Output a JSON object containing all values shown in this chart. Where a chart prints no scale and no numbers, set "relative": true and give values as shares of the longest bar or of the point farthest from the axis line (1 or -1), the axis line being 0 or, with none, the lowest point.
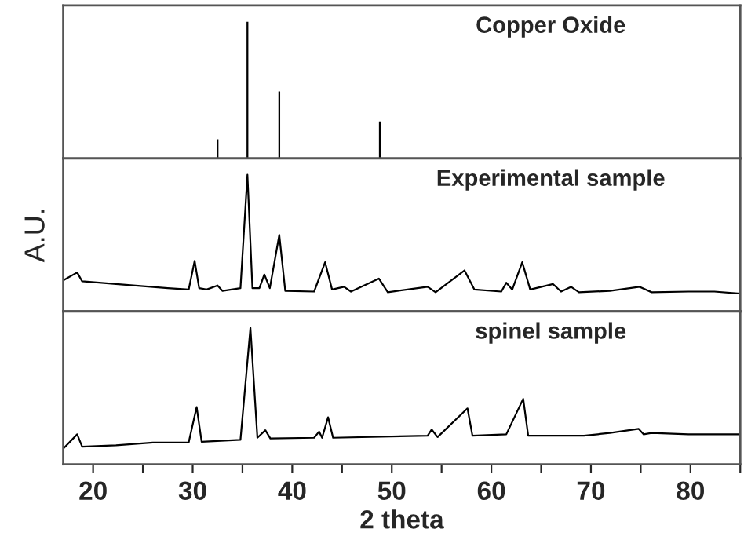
{
  "chart_data": [
    {
      "type": "bar",
      "title": "Copper Oxide",
      "relative": true,
      "xlim": [
        17,
        85
      ],
      "tick_labels": false,
      "x": [
        32.5,
        35.5,
        38.7,
        48.8
      ],
      "values": [
        0.14,
        1,
        0.49,
        0.27
      ],
      "color": "#000000"
    },
    {
      "type": "line",
      "title": "Experimental sample",
      "ylabel": "A.U.",
      "relative": true,
      "xlim": [
        17,
        85
      ],
      "tick_labels": false,
      "x": [
        17.07,
        18.4,
        18.9,
        22.3,
        27.5,
        29.6,
        30.2,
        30.65,
        31.4,
        32.5,
        33.0,
        34.8,
        35.5,
        36.0,
        36.7,
        37.2,
        37.75,
        38.7,
        39.3,
        42.2,
        43.3,
        44.0,
        45.2,
        45.9,
        48.7,
        49.6,
        53.6,
        54.4,
        57.3,
        58.3,
        61.0,
        61.5,
        62.1,
        63.1,
        63.9,
        66.2,
        67.0,
        68.0,
        68.8,
        71.9,
        74.9,
        76.1,
        79.8,
        82.4,
        85.0
      ],
      "values": [
        0.23,
        0.285,
        0.22,
        0.2,
        0.17,
        0.16,
        0.37,
        0.17,
        0.16,
        0.19,
        0.15,
        0.17,
        1,
        0.17,
        0.17,
        0.27,
        0.17,
        0.56,
        0.15,
        0.145,
        0.36,
        0.16,
        0.18,
        0.145,
        0.24,
        0.14,
        0.18,
        0.14,
        0.3,
        0.16,
        0.145,
        0.21,
        0.16,
        0.36,
        0.16,
        0.2,
        0.145,
        0.18,
        0.14,
        0.15,
        0.18,
        0.14,
        0.145,
        0.145,
        0.13
      ],
      "color": "#000000"
    },
    {
      "type": "line",
      "title": "spinel sample",
      "xlabel": "2 theta",
      "relative": true,
      "xlim": [
        17,
        85
      ],
      "xticks": [
        20,
        {
          "value": 25,
          "label": null
        },
        30,
        {
          "value": 35,
          "label": null
        },
        40,
        {
          "value": 45,
          "label": null
        },
        50,
        {
          "value": 55,
          "label": null
        },
        60,
        {
          "value": 65,
          "label": null
        },
        70,
        {
          "value": 75,
          "label": null
        },
        80,
        {
          "value": 85,
          "label": null
        }
      ],
      "tick_labels": "x",
      "x": [
        17.07,
        18.4,
        18.9,
        22.3,
        26.0,
        29.6,
        30.4,
        30.9,
        34.8,
        35.8,
        36.5,
        37.3,
        37.8,
        42.2,
        42.7,
        43.0,
        43.6,
        44.1,
        53.6,
        54.0,
        54.6,
        57.6,
        58.1,
        61.5,
        63.2,
        63.7,
        69.3,
        71.9,
        74.8,
        75.3,
        76.1,
        79.8,
        85.0
      ],
      "values": [
        0.12,
        0.22,
        0.13,
        0.14,
        0.16,
        0.16,
        0.42,
        0.165,
        0.18,
        1,
        0.195,
        0.25,
        0.19,
        0.195,
        0.24,
        0.195,
        0.345,
        0.195,
        0.21,
        0.255,
        0.2,
        0.41,
        0.21,
        0.22,
        0.48,
        0.21,
        0.21,
        0.23,
        0.26,
        0.22,
        0.23,
        0.22,
        0.22
      ],
      "color": "#000000"
    }
  ]
}
